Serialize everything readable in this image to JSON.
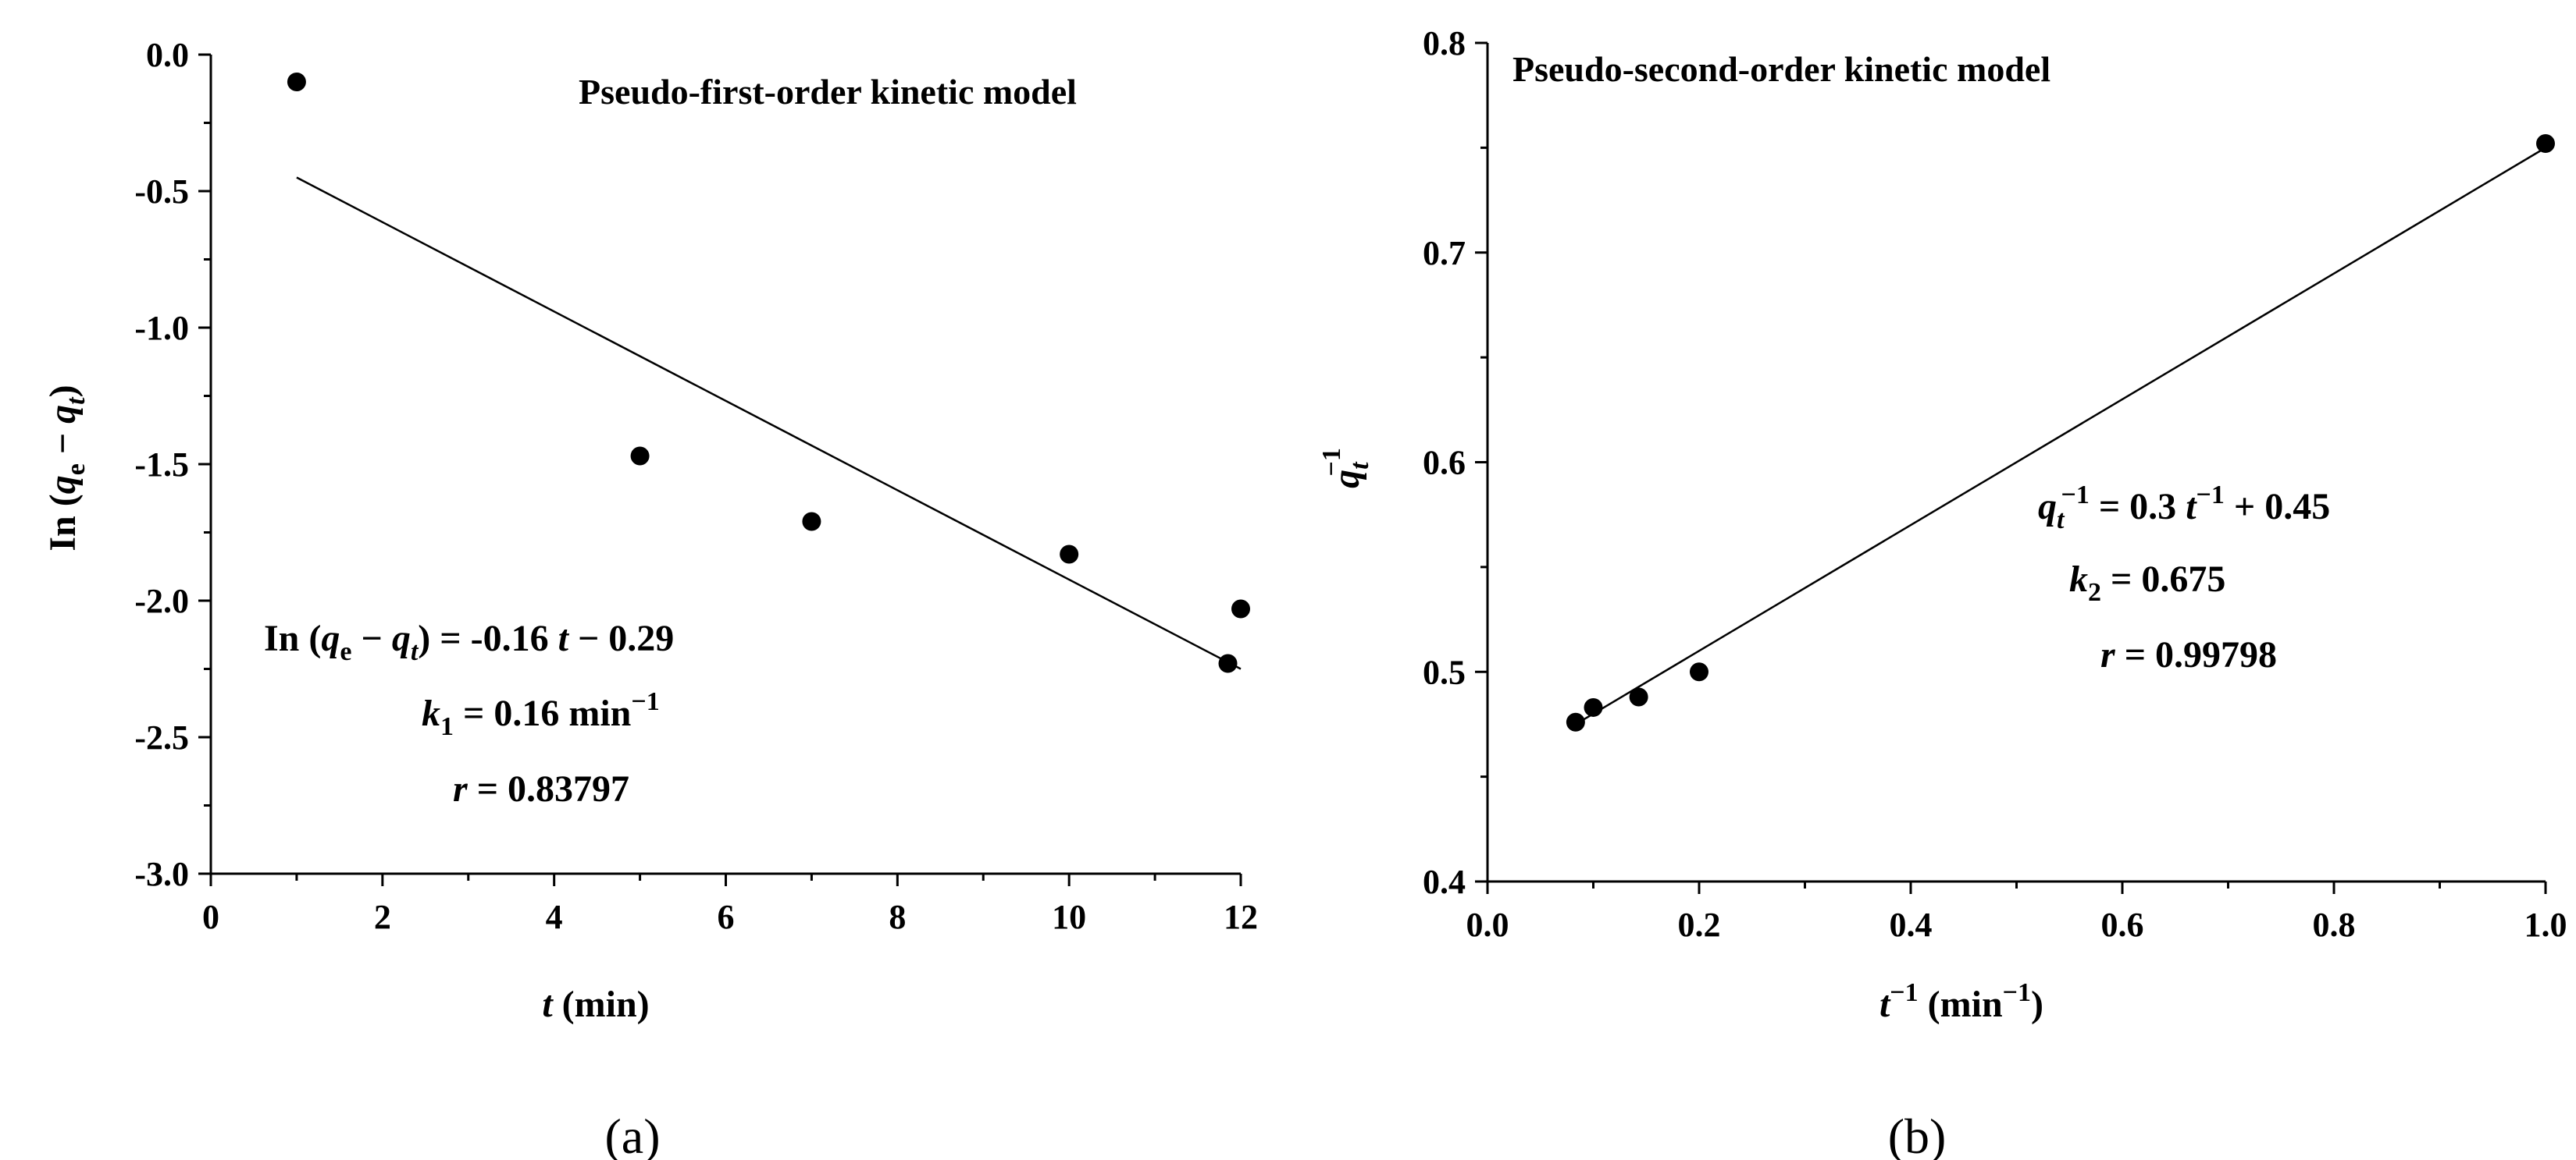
{
  "chart_data": [
    {
      "type": "scatter",
      "panel_label": "(a)",
      "title": "Pseudo-first-order kinetic model",
      "xlabel": {
        "var": "t",
        "rest": " (min)"
      },
      "ylabel": {
        "pre": "In (",
        "q1": "q",
        "s1": "e",
        "minus": " − ",
        "q2": "q",
        "s2": "t",
        "post": ")"
      },
      "xlim": [
        0,
        12
      ],
      "ylim": [
        -3.0,
        0.0
      ],
      "xticks": [
        0,
        2,
        4,
        6,
        8,
        10,
        12
      ],
      "yticks": [
        0.0,
        -0.5,
        -1.0,
        -1.5,
        -2.0,
        -2.5,
        -3.0
      ],
      "xtick_labels": [
        "0",
        "2",
        "4",
        "6",
        "8",
        "10",
        "12"
      ],
      "ytick_labels": [
        "0.0",
        "-0.5",
        "-1.0",
        "-1.5",
        "-2.0",
        "-2.5",
        "-3.0"
      ],
      "points": [
        {
          "x": 1,
          "y": -0.1
        },
        {
          "x": 5,
          "y": -1.47
        },
        {
          "x": 7,
          "y": -1.71
        },
        {
          "x": 10,
          "y": -1.83
        },
        {
          "x": 11.85,
          "y": -2.23
        },
        {
          "x": 12,
          "y": -2.03
        }
      ],
      "fit_line": [
        {
          "x": 1,
          "y": -0.45
        },
        {
          "x": 12,
          "y": -2.25
        }
      ],
      "annotation": {
        "eq_pre": "In (",
        "eq_q1": "q",
        "eq_s1": "e",
        "eq_minus": " − ",
        "eq_q2": "q",
        "eq_s2": "t",
        "eq_post": ") = -0.16 ",
        "eq_t": "t",
        "eq_end": " − 0.29",
        "k_var": "k",
        "k_sub": "1",
        "k_rest": " = 0.16 min",
        "k_sup": "−1",
        "r_var": "r",
        "r_rest": " = 0.83797"
      }
    },
    {
      "type": "scatter",
      "panel_label": "(b)",
      "title": "Pseudo-second-order kinetic model",
      "xlabel": {
        "var": "t",
        "sup": "−1",
        "rest": " (min",
        "sup2": "−1",
        "end": ")"
      },
      "ylabel": {
        "var": "q",
        "sub": "t",
        "sup": "−1"
      },
      "xlim": [
        0.0,
        1.0
      ],
      "ylim": [
        0.4,
        0.8
      ],
      "xticks": [
        0.0,
        0.2,
        0.4,
        0.6,
        0.8,
        1.0
      ],
      "yticks": [
        0.4,
        0.5,
        0.6,
        0.7,
        0.8
      ],
      "xtick_labels": [
        "0.0",
        "0.2",
        "0.4",
        "0.6",
        "0.8",
        "1.0"
      ],
      "ytick_labels": [
        "0.4",
        "0.5",
        "0.6",
        "0.7",
        "0.8"
      ],
      "points": [
        {
          "x": 0.0833,
          "y": 0.476
        },
        {
          "x": 0.1,
          "y": 0.483
        },
        {
          "x": 0.1429,
          "y": 0.488
        },
        {
          "x": 0.2,
          "y": 0.5
        },
        {
          "x": 1.0,
          "y": 0.752
        }
      ],
      "fit_line": [
        {
          "x": 0.0833,
          "y": 0.475
        },
        {
          "x": 1.0,
          "y": 0.75
        }
      ],
      "annotation": {
        "eq_q": "q",
        "eq_sub": "t",
        "eq_sup": "−1",
        "eq_mid": " = 0.3 ",
        "eq_t": "t",
        "eq_tsup": "−1",
        "eq_end": " + 0.45",
        "k_var": "k",
        "k_sub": "2",
        "k_rest": " = 0.675",
        "r_var": "r",
        "r_rest": " = 0.99798"
      }
    }
  ]
}
